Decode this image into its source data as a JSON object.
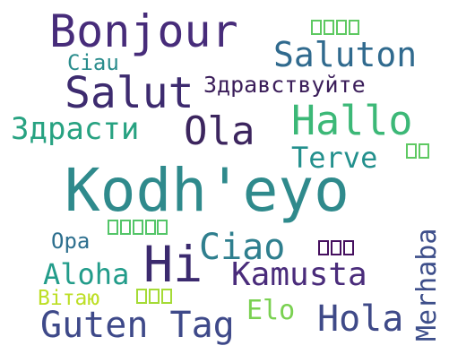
{
  "words": {
    "kodheyo": {
      "text": "Kodh'eyo",
      "color": "#2f8a8c"
    },
    "bonjour": {
      "text": "Bonjour",
      "color": "#472c7a"
    },
    "salut": {
      "text": "Salut",
      "color": "#3d2b6f"
    },
    "saluton": {
      "text": "Saluton",
      "color": "#306a8e"
    },
    "zdravstv": {
      "text": "Здравствуйте",
      "color": "#3b1e5a"
    },
    "hallo": {
      "text": "Hallo",
      "color": "#3cb877"
    },
    "ola": {
      "text": "Ola",
      "color": "#3c255e"
    },
    "zdrasti": {
      "text": "Здрасти",
      "color": "#27a281"
    },
    "ciau": {
      "text": "Ciau",
      "color": "#2a8c8c"
    },
    "terve": {
      "text": "Terve",
      "color": "#23908d"
    },
    "hi": {
      "text": "Hi",
      "color": "#3b2a6e"
    },
    "ciao": {
      "text": "Ciao",
      "color": "#2f7f8e"
    },
    "kamusta": {
      "text": "Kamusta",
      "color": "#4a2c7b"
    },
    "merhaba": {
      "text": "Merhaba",
      "color": "#3d4e8a"
    },
    "aloha": {
      "text": "Aloha",
      "color": "#229c8a"
    },
    "opa": {
      "text": "Opa",
      "color": "#2d6f8e"
    },
    "elo": {
      "text": "Elo",
      "color": "#7ad151"
    },
    "hola": {
      "text": "Hola",
      "color": "#3f4a88"
    },
    "vitayu": {
      "text": "Вітаю",
      "color": "#bddf26"
    },
    "gutentag": {
      "text": "Guten Tag",
      "color": "#3e4989"
    },
    "boxes_top": {
      "count": 4,
      "color": "#5ec962"
    },
    "boxes_right": {
      "count": 2,
      "color": "#5ec962"
    },
    "boxes_mid": {
      "count": 5,
      "color": "#53c568"
    },
    "boxes_red": {
      "count": 3,
      "color": "#46105f"
    },
    "boxes_low": {
      "count": 3,
      "color": "#a5db36"
    }
  }
}
